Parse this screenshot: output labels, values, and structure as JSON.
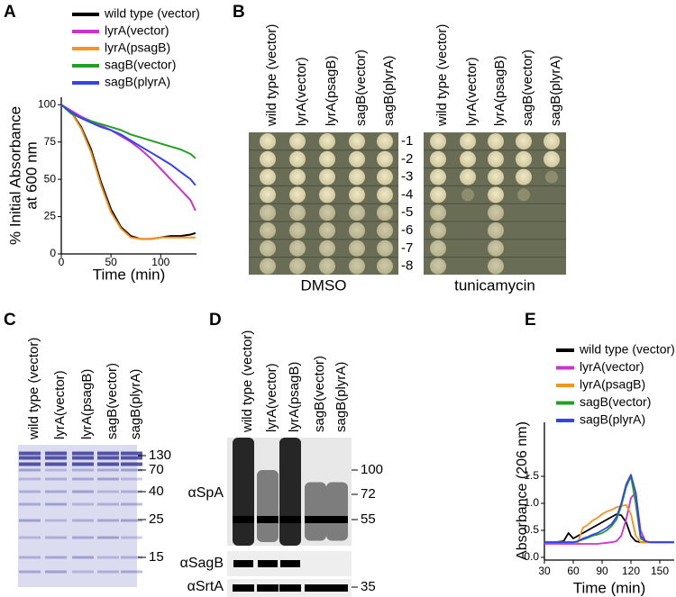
{
  "panel_labels": [
    "A",
    "B",
    "C",
    "D",
    "E"
  ],
  "chart_data": [
    {
      "type": "line",
      "x_label": "Time (min)",
      "y_label": [
        "% Initial Absorbance",
        "at 600 nm"
      ],
      "x": [
        0,
        10,
        20,
        30,
        40,
        50,
        60,
        70,
        80,
        90,
        100,
        110,
        120,
        130,
        135
      ],
      "xlim": [
        0,
        136
      ],
      "xticks": [
        0,
        50,
        100
      ],
      "ylim": [
        0,
        105
      ],
      "yticks": [
        0,
        25,
        50,
        75,
        100
      ],
      "series": [
        {
          "name": "wild type (vector)",
          "color": "#000000",
          "values": [
            100,
            95,
            85,
            70,
            48,
            30,
            18,
            12,
            10,
            10,
            11,
            12,
            12,
            13,
            14
          ]
        },
        {
          "name": "lyrA(vector)",
          "color": "#cc33cc",
          "values": [
            100,
            96,
            92,
            89,
            86,
            83,
            79,
            75,
            70,
            64,
            57,
            50,
            43,
            36,
            29
          ]
        },
        {
          "name": "lyrA(psagB)",
          "color": "#f7941d",
          "values": [
            100,
            95,
            84,
            68,
            46,
            28,
            17,
            11,
            10,
            10,
            11,
            11,
            11,
            11,
            11
          ]
        },
        {
          "name": "sagB(vector)",
          "color": "#22a022",
          "values": [
            100,
            94,
            91,
            89,
            87,
            85,
            83,
            80,
            78,
            76,
            74,
            72,
            70,
            67,
            64
          ]
        },
        {
          "name": "sagB(plyrA)",
          "color": "#3344ee",
          "values": [
            100,
            95,
            91,
            88,
            85,
            83,
            80,
            76,
            72,
            68,
            64,
            60,
            55,
            50,
            46
          ]
        }
      ]
    },
    {
      "type": "line",
      "x_label": "Time (min)",
      "y_label": "Absorbance (206 nm)",
      "x": [
        30,
        35,
        40,
        45,
        50,
        55,
        60,
        65,
        70,
        75,
        80,
        85,
        90,
        95,
        100,
        105,
        110,
        115,
        120,
        125,
        130,
        135,
        140,
        145,
        150,
        155,
        160,
        165
      ],
      "xlim": [
        30,
        165
      ],
      "xticks": [
        30,
        60,
        90,
        120,
        150
      ],
      "ylim": [
        -0.05,
        2.5
      ],
      "yticks": [
        {
          "value": 0,
          "label": "0.0"
        },
        0.5,
        {
          "value": 1,
          "label": "1.0"
        },
        1.5
      ],
      "series": [
        {
          "name": "wild type (vector)",
          "color": "#000000",
          "values": [
            0.28,
            0.28,
            0.28,
            0.29,
            0.3,
            0.45,
            0.35,
            0.4,
            0.45,
            0.5,
            0.55,
            0.6,
            0.65,
            0.7,
            0.75,
            0.8,
            0.78,
            0.65,
            0.4,
            0.3,
            0.28,
            0.28,
            0.28,
            0.28,
            0.28,
            0.28,
            0.28,
            0.28
          ]
        },
        {
          "name": "lyrA(vector)",
          "color": "#cc33cc",
          "values": [
            0.25,
            0.25,
            0.25,
            0.25,
            0.25,
            0.25,
            0.25,
            0.25,
            0.25,
            0.25,
            0.25,
            0.25,
            0.26,
            0.27,
            0.28,
            0.3,
            0.4,
            0.7,
            1.1,
            1.2,
            0.5,
            0.3,
            0.28,
            0.28,
            0.28,
            0.28,
            0.28,
            0.28
          ]
        },
        {
          "name": "lyrA(psagB)",
          "color": "#f7941d",
          "values": [
            0.28,
            0.28,
            0.28,
            0.28,
            0.28,
            0.28,
            0.28,
            0.28,
            0.55,
            0.6,
            0.68,
            0.73,
            0.8,
            0.85,
            0.88,
            0.93,
            0.95,
            0.97,
            0.8,
            0.4,
            0.28,
            0.28,
            0.28,
            0.28,
            0.28,
            0.28,
            0.28,
            0.28
          ]
        },
        {
          "name": "sagB(vector)",
          "color": "#22a022",
          "values": [
            0.28,
            0.28,
            0.28,
            0.28,
            0.28,
            0.28,
            0.28,
            0.3,
            0.33,
            0.36,
            0.4,
            0.42,
            0.45,
            0.5,
            0.58,
            0.7,
            0.95,
            1.3,
            1.5,
            1.0,
            0.35,
            0.3,
            0.28,
            0.28,
            0.28,
            0.28,
            0.28,
            0.28
          ]
        },
        {
          "name": "sagB(plyrA)",
          "color": "#3344ee",
          "values": [
            0.28,
            0.28,
            0.28,
            0.28,
            0.28,
            0.28,
            0.28,
            0.3,
            0.35,
            0.38,
            0.42,
            0.45,
            0.5,
            0.55,
            0.62,
            0.75,
            1.0,
            1.35,
            1.53,
            1.2,
            0.4,
            0.3,
            0.28,
            0.28,
            0.28,
            0.28,
            0.28,
            0.28
          ]
        }
      ]
    }
  ],
  "panel_b": {
    "columns": [
      "wild type (vector)",
      "lyrA(vector)",
      "lyrA(psagB)",
      "sagB(vector)",
      "sagB(plyrA)",
      "wild type (vector)",
      "lyrA(vector)",
      "lyrA(psagB)",
      "sagB(vector)",
      "sagB(plyrA)"
    ],
    "dilutions": [
      "-1",
      "-2",
      "-3",
      "-4",
      "-5",
      "-6",
      "-7",
      "-8"
    ],
    "plates": [
      "DMSO",
      "tunicamycin"
    ]
  },
  "panel_c": {
    "columns": [
      "wild type (vector)",
      "lyrA(vector)",
      "lyrA(psagB)",
      "sagB(vector)",
      "sagB(plyrA)"
    ],
    "markers": [
      "130",
      "70",
      "40",
      "25",
      "15"
    ]
  },
  "panel_d": {
    "columns": [
      "wild type (vector)",
      "lyrA(vector)",
      "lyrA(psagB)",
      "sagB(vector)",
      "sagB(plyrA)"
    ],
    "markers": [
      "100",
      "72",
      "55",
      "35"
    ],
    "blots": [
      "αSpA",
      "αSagB",
      "αSrtA"
    ]
  }
}
